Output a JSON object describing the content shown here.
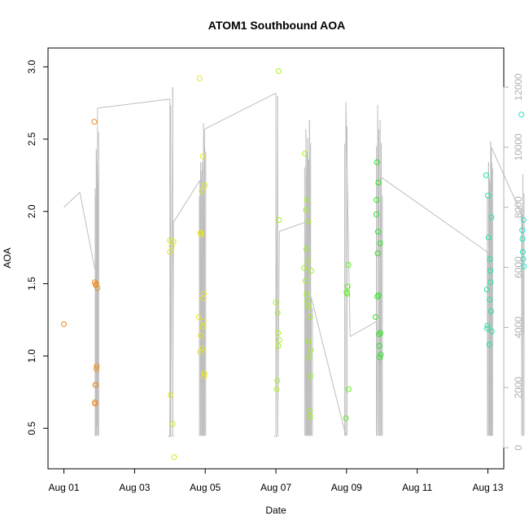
{
  "chart_data": {
    "type": "scatter",
    "title": "ATOM1 Southbound AOA",
    "xlabel": "Date",
    "ylabel": "AOA",
    "ylim": [
      0.22,
      3.13
    ],
    "y2lim": [
      -700,
      13300
    ],
    "xlim_days": [
      -0.45,
      12.45
    ],
    "x_ticks": [
      "Aug 01",
      "Aug 03",
      "Aug 05",
      "Aug 07",
      "Aug 09",
      "Aug 11",
      "Aug 13"
    ],
    "y_ticks": [
      "0.5",
      "1.0",
      "1.5",
      "2.0",
      "2.5",
      "3.0"
    ],
    "y2_ticks": [
      "0",
      "2000",
      "4000",
      "6000",
      "8000",
      "10000",
      "12000"
    ],
    "grid": false,
    "colors": {
      "line": "#bebebe",
      "right_axis": "#b0b0b0",
      "aug01": "#f0821e",
      "aug02": "#f08c1e",
      "aug03": "#d6e61e",
      "aug04": "#e6e61e",
      "aug06": "#a8f01e",
      "aug07": "#a0f01e",
      "aug08": "#5af01e",
      "aug09": "#28e61e",
      "aug12": "#1ee6a0",
      "aug13": "#1ee6c8"
    },
    "series": [
      {
        "color": "aug01",
        "x": [
          0.0
        ],
        "y": [
          1.22
        ]
      },
      {
        "color": "aug02",
        "x": [
          0.86,
          0.87,
          0.88,
          0.88,
          0.89,
          0.9,
          0.9,
          0.91,
          0.92,
          0.93,
          0.95
        ],
        "y": [
          2.62,
          1.51,
          0.68,
          0.67,
          0.8,
          0.8,
          1.49,
          1.5,
          0.91,
          0.93,
          1.47
        ]
      },
      {
        "color": "aug03",
        "x": [
          3.0,
          3.0,
          3.02,
          3.05,
          3.08,
          3.1,
          3.12
        ],
        "y": [
          1.72,
          1.8,
          0.73,
          1.76,
          0.53,
          1.79,
          0.3
        ]
      },
      {
        "color": "aug04",
        "x": [
          3.82,
          3.84,
          3.85,
          3.86,
          3.87,
          3.88,
          3.89,
          3.9,
          3.91,
          3.92,
          3.93,
          3.94,
          3.95,
          3.96,
          3.97,
          3.98,
          3.99
        ],
        "y": [
          1.27,
          2.92,
          1.03,
          1.85,
          1.14,
          1.85,
          1.84,
          2.14,
          1.05,
          1.2,
          2.38,
          1.4,
          1.24,
          1.43,
          0.86,
          0.88,
          2.18
        ]
      },
      {
        "color": "aug06",
        "x": [
          6.0,
          6.02,
          6.04,
          6.05,
          6.06,
          6.07,
          6.08,
          6.09,
          6.1
        ],
        "y": [
          1.37,
          0.77,
          0.83,
          1.3,
          1.16,
          1.07,
          2.97,
          1.94,
          1.11
        ]
      },
      {
        "color": "aug07",
        "x": [
          6.8,
          6.82,
          6.84,
          6.85,
          6.86,
          6.87,
          6.88,
          6.89,
          6.9,
          6.91,
          6.92,
          6.93,
          6.94,
          6.95,
          6.96,
          6.97,
          6.98,
          6.99,
          7.0
        ],
        "y": [
          1.61,
          2.4,
          1.52,
          2.01,
          1.74,
          1.43,
          2.08,
          1.38,
          1.66,
          1.93,
          1.1,
          1.34,
          0.99,
          0.62,
          1.27,
          0.58,
          0.86,
          1.04,
          1.59
        ]
      },
      {
        "color": "aug08",
        "x": [
          7.98,
          8.0,
          8.02,
          8.03,
          8.05,
          8.06
        ],
        "y": [
          0.57,
          1.44,
          1.43,
          1.48,
          1.63,
          0.77
        ]
      },
      {
        "color": "aug09",
        "x": [
          8.82,
          8.84,
          8.85,
          8.86,
          8.87,
          8.88,
          8.89,
          8.9,
          8.91,
          8.92,
          8.93,
          8.94,
          8.95,
          8.96,
          8.97
        ],
        "y": [
          1.27,
          1.98,
          2.08,
          2.34,
          1.41,
          1.71,
          1.86,
          2.2,
          1.42,
          1.15,
          1.07,
          0.99,
          1.78,
          1.16,
          1.01
        ]
      },
      {
        "color": "aug12",
        "x": [
          11.95,
          11.97,
          11.98,
          11.99,
          12.0,
          12.02,
          12.04,
          12.05,
          12.06,
          12.07,
          12.08,
          12.09,
          12.1,
          12.11
        ],
        "y": [
          2.25,
          1.46,
          1.19,
          1.21,
          2.11,
          1.82,
          1.08,
          1.39,
          1.67,
          1.59,
          1.51,
          1.31,
          1.96,
          1.17
        ]
      },
      {
        "color": "aug13",
        "x": [
          12.95,
          12.97,
          12.98,
          12.99,
          13.0,
          13.01,
          13.02
        ],
        "y": [
          2.67,
          1.87,
          1.81,
          1.72,
          1.67,
          1.94,
          1.62
        ]
      }
    ],
    "bg_segments": [
      {
        "x": 0.0,
        "y": 8000
      },
      {
        "x": 0.45,
        "y": 8500
      },
      {
        "x": 0.9,
        "y": 5800
      },
      {
        "x": 0.92,
        "y": 400,
        "spike_to": 9800
      },
      {
        "x": 0.93,
        "y": 700,
        "spike_to": 9500
      },
      {
        "x": 0.95,
        "y": 1500,
        "spike_to": 11300
      },
      {
        "x": 3.0,
        "y": 11600,
        "spike_to": 400
      },
      {
        "x": 3.02,
        "y": 11400,
        "spike_to": 400
      },
      {
        "x": 3.08,
        "y": 12000,
        "spike_to": 400
      },
      {
        "x": 3.1,
        "y": 7500
      },
      {
        "x": 3.85,
        "y": 8900
      },
      {
        "x": 3.87,
        "y": 400,
        "spike_to": 9500
      },
      {
        "x": 3.9,
        "y": 400,
        "spike_to": 9200
      },
      {
        "x": 3.95,
        "y": 400,
        "spike_to": 10800
      },
      {
        "x": 3.98,
        "y": 400,
        "spike_to": 10600
      },
      {
        "x": 6.0,
        "y": 11800,
        "spike_to": 400
      },
      {
        "x": 6.05,
        "y": 11700,
        "spike_to": 400
      },
      {
        "x": 6.1,
        "y": 7200
      },
      {
        "x": 6.82,
        "y": 7500
      },
      {
        "x": 6.85,
        "y": 400,
        "spike_to": 10600
      },
      {
        "x": 6.9,
        "y": 400,
        "spike_to": 10300
      },
      {
        "x": 6.95,
        "y": 400,
        "spike_to": 10900
      },
      {
        "x": 7.0,
        "y": 400,
        "spike_to": 5000
      },
      {
        "x": 7.98,
        "y": 400,
        "spike_to": 11500
      },
      {
        "x": 8.1,
        "y": 3700
      },
      {
        "x": 8.85,
        "y": 4200
      },
      {
        "x": 8.88,
        "y": 400,
        "spike_to": 11400
      },
      {
        "x": 8.95,
        "y": 400,
        "spike_to": 10900
      },
      {
        "x": 8.98,
        "y": 400,
        "spike_to": 9000
      },
      {
        "x": 12.0,
        "y": 6500
      },
      {
        "x": 12.02,
        "y": 400,
        "spike_to": 9500
      },
      {
        "x": 12.08,
        "y": 400,
        "spike_to": 10200
      },
      {
        "x": 12.1,
        "y": 400,
        "spike_to": 10000
      },
      {
        "x": 12.98,
        "y": 7700
      },
      {
        "x": 12.99,
        "y": 400,
        "spike_to": 9100
      },
      {
        "x": 13.0,
        "y": 3800
      }
    ]
  }
}
